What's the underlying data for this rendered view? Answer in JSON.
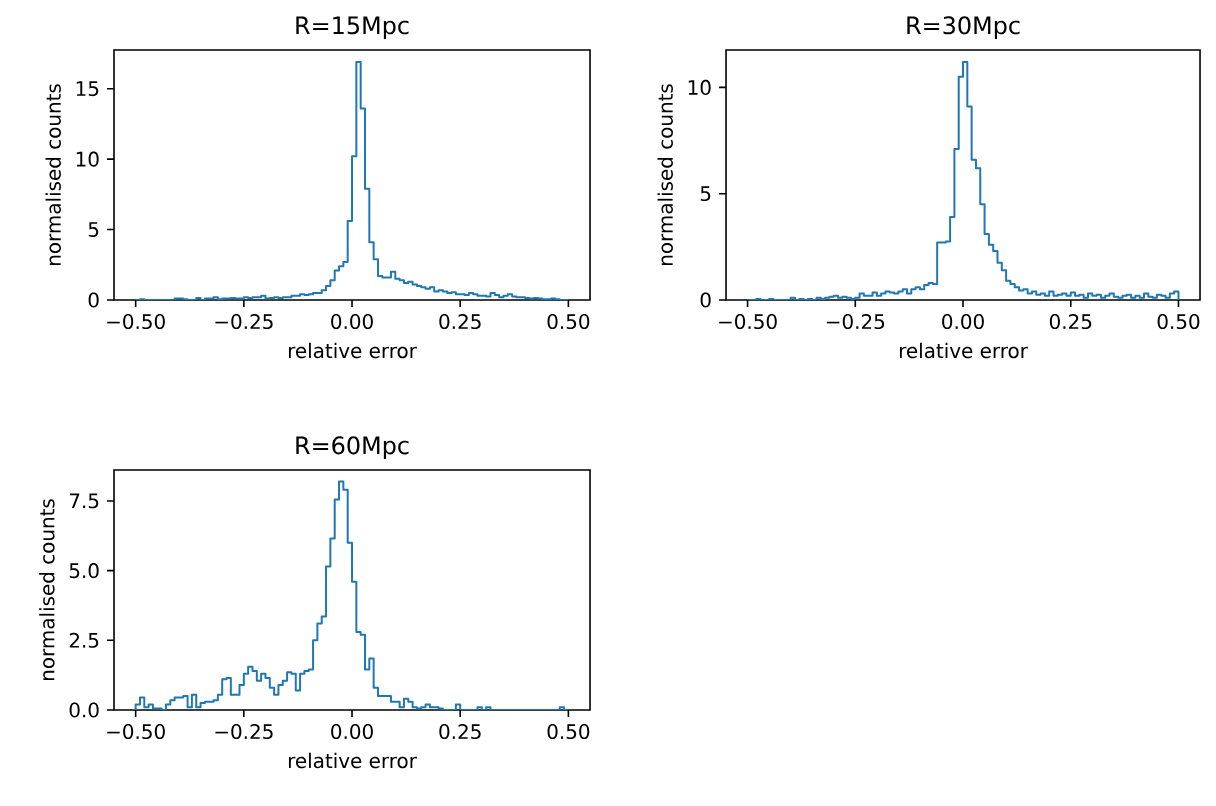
{
  "chart_data": [
    {
      "type": "histogram",
      "title": "R=15Mpc",
      "xlabel": "relative error",
      "ylabel": "normalised counts",
      "color": "#1f77b4",
      "xlim": [
        -0.55,
        0.55
      ],
      "ylim": [
        0,
        17.75
      ],
      "xticks": [
        {
          "value": -0.5,
          "label": "−0.50"
        },
        {
          "value": -0.25,
          "label": "−0.25"
        },
        {
          "value": 0,
          "label": "0.00"
        },
        {
          "value": 0.25,
          "label": "0.25"
        },
        {
          "value": 0.5,
          "label": "0.50"
        }
      ],
      "yticks": [
        0,
        5,
        10,
        15
      ],
      "bins": [
        -0.5,
        -0.49,
        -0.48,
        -0.47,
        -0.46,
        -0.45,
        -0.44,
        -0.43,
        -0.42,
        -0.41,
        -0.4,
        -0.39,
        -0.38,
        -0.37,
        -0.36,
        -0.35,
        -0.34,
        -0.33,
        -0.32,
        -0.31,
        -0.3,
        -0.29,
        -0.28,
        -0.27,
        -0.26,
        -0.25,
        -0.24,
        -0.23,
        -0.22,
        -0.21,
        -0.2,
        -0.19,
        -0.18,
        -0.17,
        -0.16,
        -0.15,
        -0.14,
        -0.13,
        -0.12,
        -0.11,
        -0.1,
        -0.09,
        -0.08,
        -0.07,
        -0.06,
        -0.05,
        -0.04,
        -0.03,
        -0.02,
        -0.01,
        0,
        0.01,
        0.02,
        0.03,
        0.04,
        0.05,
        0.06,
        0.07,
        0.08,
        0.09,
        0.1,
        0.11,
        0.12,
        0.13,
        0.14,
        0.15,
        0.16,
        0.17,
        0.18,
        0.19,
        0.2,
        0.21,
        0.22,
        0.23,
        0.24,
        0.25,
        0.26,
        0.27,
        0.28,
        0.29,
        0.3,
        0.31,
        0.32,
        0.33,
        0.34,
        0.35,
        0.36,
        0.37,
        0.38,
        0.39,
        0.4,
        0.41,
        0.42,
        0.43,
        0.44,
        0.45,
        0.46,
        0.47,
        0.48,
        0.49,
        0.5
      ],
      "values": [
        0,
        0.05,
        0,
        0,
        0,
        0,
        0,
        0,
        0,
        0.1,
        0.1,
        0.05,
        0,
        0,
        0.15,
        0,
        0.1,
        0.1,
        0.2,
        0.05,
        0.1,
        0.1,
        0.15,
        0.1,
        0.1,
        0.2,
        0.15,
        0.2,
        0.2,
        0.3,
        0.1,
        0.15,
        0.2,
        0.15,
        0.2,
        0.2,
        0.3,
        0.3,
        0.4,
        0.35,
        0.4,
        0.5,
        0.5,
        0.7,
        1.0,
        1.4,
        2.1,
        2.4,
        2.7,
        5.6,
        10.2,
        16.9,
        13.6,
        7.9,
        4.1,
        2.9,
        1.7,
        1.6,
        1.6,
        2.0,
        1.5,
        1.4,
        1.2,
        1.3,
        1.1,
        1.0,
        0.9,
        0.8,
        0.9,
        0.6,
        0.7,
        0.6,
        0.5,
        0.55,
        0.4,
        0.4,
        0.35,
        0.5,
        0.4,
        0.3,
        0.3,
        0.25,
        0.5,
        0.35,
        0.2,
        0.3,
        0.4,
        0.25,
        0.2,
        0.2,
        0.15,
        0.1,
        0.15,
        0.1,
        0.05,
        0.05,
        0.1,
        0.05,
        0,
        0
      ]
    },
    {
      "type": "histogram",
      "title": "R=30Mpc",
      "xlabel": "relative error",
      "ylabel": "normalised counts",
      "color": "#1f77b4",
      "xlim": [
        -0.55,
        0.55
      ],
      "ylim": [
        0,
        11.76
      ],
      "xticks": [
        {
          "value": -0.5,
          "label": "−0.50"
        },
        {
          "value": -0.25,
          "label": "−0.25"
        },
        {
          "value": 0,
          "label": "0.00"
        },
        {
          "value": 0.25,
          "label": "0.25"
        },
        {
          "value": 0.5,
          "label": "0.50"
        }
      ],
      "yticks": [
        0,
        5,
        10
      ],
      "bins": [
        -0.5,
        -0.49,
        -0.48,
        -0.47,
        -0.46,
        -0.45,
        -0.44,
        -0.43,
        -0.42,
        -0.41,
        -0.4,
        -0.39,
        -0.38,
        -0.37,
        -0.36,
        -0.35,
        -0.34,
        -0.33,
        -0.32,
        -0.31,
        -0.3,
        -0.29,
        -0.28,
        -0.27,
        -0.26,
        -0.25,
        -0.24,
        -0.23,
        -0.22,
        -0.21,
        -0.2,
        -0.19,
        -0.18,
        -0.17,
        -0.16,
        -0.15,
        -0.14,
        -0.13,
        -0.12,
        -0.11,
        -0.1,
        -0.09,
        -0.08,
        -0.07,
        -0.06,
        -0.05,
        -0.04,
        -0.03,
        -0.02,
        -0.01,
        0,
        0.01,
        0.02,
        0.03,
        0.04,
        0.05,
        0.06,
        0.07,
        0.08,
        0.09,
        0.1,
        0.11,
        0.12,
        0.13,
        0.14,
        0.15,
        0.16,
        0.17,
        0.18,
        0.19,
        0.2,
        0.21,
        0.22,
        0.23,
        0.24,
        0.25,
        0.26,
        0.27,
        0.28,
        0.29,
        0.3,
        0.31,
        0.32,
        0.33,
        0.34,
        0.35,
        0.36,
        0.37,
        0.38,
        0.39,
        0.4,
        0.41,
        0.42,
        0.43,
        0.44,
        0.45,
        0.46,
        0.47,
        0.48,
        0.49,
        0.5
      ],
      "values": [
        0,
        0,
        0.05,
        0,
        0,
        0.05,
        0,
        0,
        0,
        0,
        0.1,
        0,
        0.05,
        0,
        0.05,
        0,
        0.1,
        0.05,
        0.1,
        0.15,
        0.2,
        0.1,
        0.15,
        0.1,
        0.05,
        0.1,
        0.3,
        0.2,
        0.2,
        0.35,
        0.2,
        0.3,
        0.4,
        0.35,
        0.3,
        0.4,
        0.5,
        0.3,
        0.5,
        0.6,
        0.5,
        0.7,
        0.8,
        0.75,
        2.7,
        2.7,
        2.75,
        3.9,
        7.1,
        10.5,
        11.2,
        9.1,
        6.6,
        6.2,
        4.5,
        3.1,
        2.6,
        2.3,
        1.75,
        1.4,
        0.9,
        0.75,
        0.6,
        0.45,
        0.5,
        0.3,
        0.4,
        0.25,
        0.3,
        0.2,
        0.4,
        0.2,
        0.25,
        0.3,
        0.2,
        0.35,
        0.2,
        0.25,
        0.1,
        0.3,
        0.2,
        0.25,
        0.1,
        0.2,
        0.3,
        0.15,
        0.1,
        0.2,
        0.25,
        0.1,
        0.2,
        0.1,
        0.3,
        0.15,
        0.1,
        0.25,
        0.2,
        0.1,
        0.3,
        0.4
      ]
    },
    {
      "type": "histogram",
      "title": "R=60Mpc",
      "xlabel": "relative error",
      "ylabel": "normalised counts",
      "color": "#1f77b4",
      "xlim": [
        -0.55,
        0.55
      ],
      "ylim": [
        0,
        8.61
      ],
      "xticks": [
        {
          "value": -0.5,
          "label": "−0.50"
        },
        {
          "value": -0.25,
          "label": "−0.25"
        },
        {
          "value": 0,
          "label": "0.00"
        },
        {
          "value": 0.25,
          "label": "0.25"
        },
        {
          "value": 0.5,
          "label": "0.50"
        }
      ],
      "yticks": [
        {
          "value": 0,
          "label": "0.0"
        },
        {
          "value": 2.5,
          "label": "2.5"
        },
        {
          "value": 5,
          "label": "5.0"
        },
        {
          "value": 7.5,
          "label": "7.5"
        }
      ],
      "bins": [
        -0.5,
        -0.49,
        -0.48,
        -0.47,
        -0.46,
        -0.45,
        -0.44,
        -0.43,
        -0.42,
        -0.41,
        -0.4,
        -0.39,
        -0.38,
        -0.37,
        -0.36,
        -0.35,
        -0.34,
        -0.33,
        -0.32,
        -0.31,
        -0.3,
        -0.29,
        -0.28,
        -0.27,
        -0.26,
        -0.25,
        -0.24,
        -0.23,
        -0.22,
        -0.21,
        -0.2,
        -0.19,
        -0.18,
        -0.17,
        -0.16,
        -0.15,
        -0.14,
        -0.13,
        -0.12,
        -0.11,
        -0.1,
        -0.09,
        -0.08,
        -0.07,
        -0.06,
        -0.05,
        -0.04,
        -0.03,
        -0.02,
        -0.01,
        0,
        0.01,
        0.02,
        0.03,
        0.04,
        0.05,
        0.06,
        0.07,
        0.08,
        0.09,
        0.1,
        0.11,
        0.12,
        0.13,
        0.14,
        0.15,
        0.16,
        0.17,
        0.18,
        0.19,
        0.2,
        0.21,
        0.22,
        0.23,
        0.24,
        0.25,
        0.26,
        0.27,
        0.28,
        0.29,
        0.3,
        0.31,
        0.32,
        0.33,
        0.34,
        0.35,
        0.36,
        0.37,
        0.38,
        0.39,
        0.4,
        0.41,
        0.42,
        0.43,
        0.44,
        0.45,
        0.46,
        0.47,
        0.48,
        0.49,
        0.5
      ],
      "values": [
        0.2,
        0.45,
        0.1,
        0.2,
        0.05,
        0.05,
        0,
        0.2,
        0.35,
        0.45,
        0.45,
        0.5,
        0.1,
        0.55,
        0.1,
        0.25,
        0.3,
        0.3,
        0.35,
        0.55,
        1.1,
        1.15,
        0.55,
        0.55,
        0.9,
        1.3,
        1.55,
        1.4,
        1.05,
        1.3,
        1.15,
        0.8,
        0.55,
        0.9,
        1.05,
        1.35,
        1.3,
        0.7,
        1.3,
        1.4,
        1.45,
        2.5,
        3.1,
        3.35,
        5.15,
        6.15,
        7.55,
        8.2,
        7.9,
        6.0,
        4.6,
        2.8,
        2.7,
        1.45,
        1.85,
        0.8,
        0.5,
        0.5,
        0.5,
        0.3,
        0.3,
        0.1,
        0.4,
        0.3,
        0.1,
        0.05,
        0.1,
        0.2,
        0.1,
        0.1,
        0.05,
        0,
        0,
        0,
        0.2,
        0,
        0,
        0,
        0,
        0.1,
        0,
        0.1,
        0,
        0,
        0,
        0,
        0,
        0,
        0,
        0,
        0,
        0,
        0,
        0,
        0,
        0,
        0,
        0,
        0.1,
        0
      ]
    }
  ]
}
